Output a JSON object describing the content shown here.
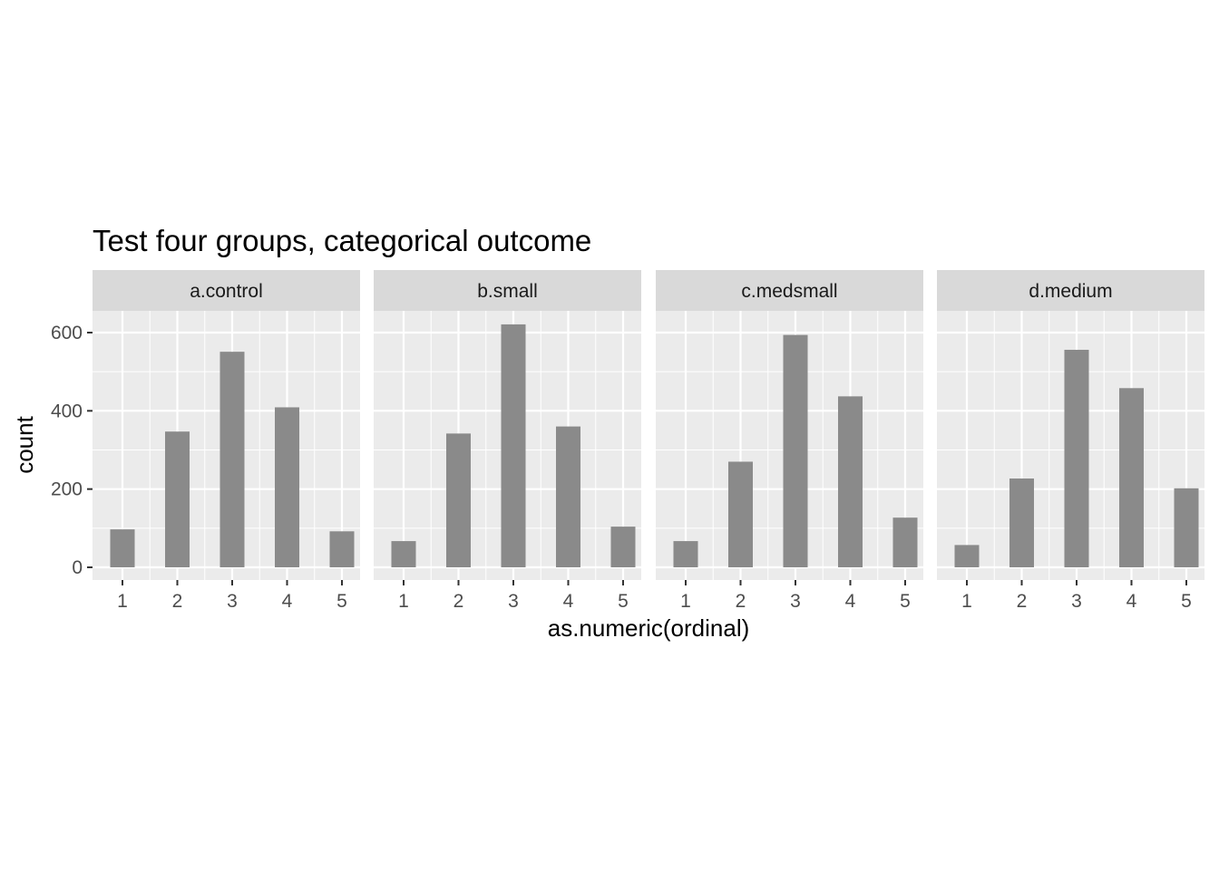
{
  "chart_data": {
    "type": "bar",
    "title": "Test four groups, categorical outcome",
    "xlabel": "as.numeric(ordinal)",
    "ylabel": "count",
    "categories": [
      "1",
      "2",
      "3",
      "4",
      "5"
    ],
    "ylim": [
      0,
      650
    ],
    "yticks": [
      0,
      200,
      400,
      600
    ],
    "grid": true,
    "facets": [
      {
        "name": "a.control",
        "values": [
          97,
          347,
          551,
          409,
          92
        ]
      },
      {
        "name": "b.small",
        "values": [
          67,
          342,
          621,
          360,
          104
        ]
      },
      {
        "name": "c.medsmall",
        "values": [
          67,
          270,
          594,
          437,
          127
        ]
      },
      {
        "name": "d.medium",
        "values": [
          57,
          227,
          556,
          458,
          202
        ]
      }
    ],
    "colors": {
      "bar": "#8a8a8a",
      "panel": "#ebebeb",
      "strip": "#d9d9d9",
      "grid": "#ffffff"
    }
  }
}
